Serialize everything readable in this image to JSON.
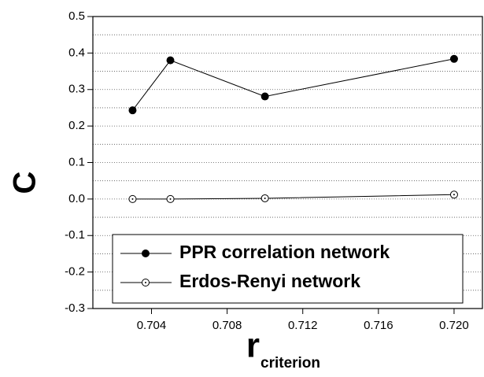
{
  "chart_data": {
    "type": "line",
    "xlabel": "r",
    "xlabel_sub": "criterion",
    "ylabel": "C",
    "x": [
      0.703,
      0.705,
      0.71,
      0.72
    ],
    "series": [
      {
        "name": "PPR correlation network",
        "color": "#000000",
        "marker": "filled",
        "values": [
          0.243,
          0.38,
          0.281,
          0.384
        ]
      },
      {
        "name": "Erdos-Renyi network",
        "color": "#000000",
        "marker": "open",
        "values": [
          0.0,
          0.0,
          0.002,
          0.012
        ]
      }
    ],
    "xlim": [
      0.7009,
      0.7215
    ],
    "xticks": [
      0.704,
      0.708,
      0.712,
      0.716,
      {
        "value": 0.72,
        "label": "0.720"
      }
    ],
    "ylim": [
      -0.3,
      0.5
    ],
    "yticks": [
      {
        "value": 0.5,
        "label": "0.5"
      },
      {
        "value": 0.4,
        "label": "0.4"
      },
      {
        "value": 0.3,
        "label": "0.3"
      },
      {
        "value": 0.2,
        "label": "0.2"
      },
      {
        "value": 0.1,
        "label": "0.1"
      },
      {
        "value": 0,
        "label": "0.0"
      },
      {
        "value": -0.1,
        "label": "-0.1"
      },
      {
        "value": -0.2,
        "label": "-0.2"
      },
      {
        "value": -0.3,
        "label": "-0.3"
      }
    ],
    "yminorticks": [
      0.45,
      0.35,
      0.25,
      0.15,
      0.05,
      -0.05,
      -0.15,
      -0.25
    ],
    "grid": true,
    "legend": "lower left"
  }
}
